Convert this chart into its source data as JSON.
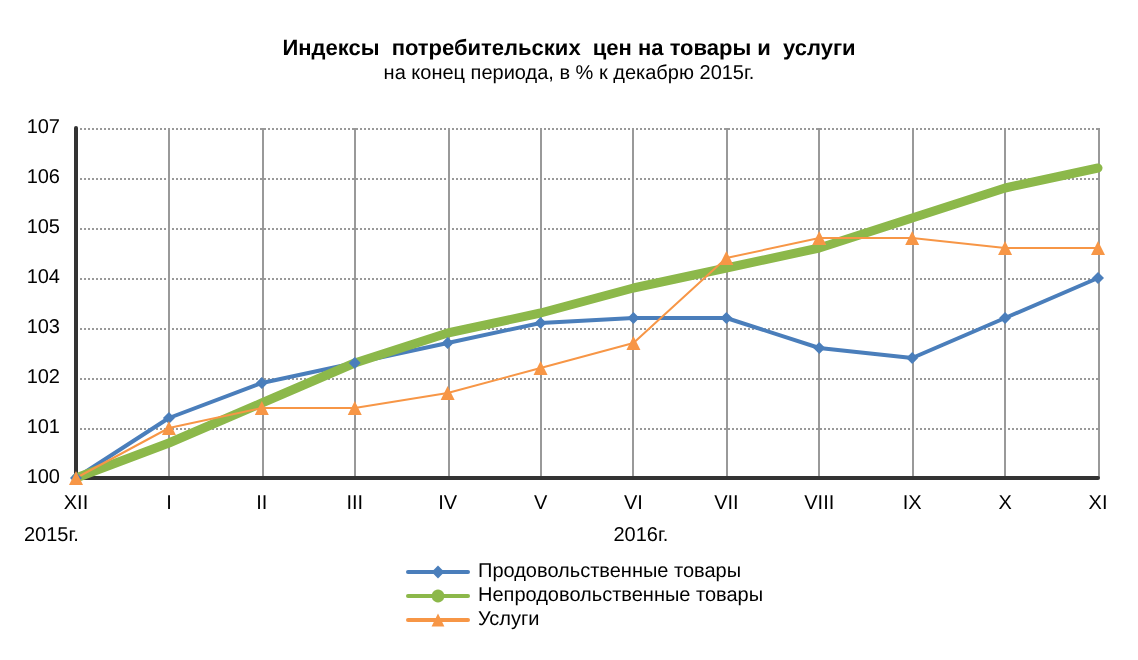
{
  "chart_data": {
    "type": "line",
    "title": "Индексы  потребительских  цен на товары и  услуги",
    "subtitle": "на конец периода, в % к декабрю 2015г.",
    "categories": [
      "XII",
      "I",
      "II",
      "III",
      "IV",
      "V",
      "VI",
      "VII",
      "VIII",
      "IX",
      "X",
      "XI"
    ],
    "series": [
      {
        "name": "Продовольственные товары",
        "color": "#4a7ebb",
        "marker": "diamond",
        "values": [
          100,
          101.2,
          101.9,
          102.3,
          102.7,
          103.1,
          103.2,
          103.2,
          102.6,
          102.4,
          103.2,
          104.0
        ]
      },
      {
        "name": "Непродовольственные товары",
        "color": "#8cb84a",
        "marker": "none",
        "values": [
          100,
          100.7,
          101.5,
          102.3,
          102.9,
          103.3,
          103.8,
          104.2,
          104.6,
          105.2,
          105.8,
          106.2
        ]
      },
      {
        "name": "Услуги",
        "color": "#f79646",
        "marker": "triangle",
        "values": [
          100,
          101.0,
          101.4,
          101.4,
          101.7,
          102.2,
          102.7,
          104.4,
          104.8,
          104.8,
          104.6,
          104.6
        ]
      }
    ],
    "annotations": [
      "2015г.",
      "2016г."
    ],
    "ylim": [
      100,
      107
    ],
    "yticks": [
      100,
      101,
      102,
      103,
      104,
      105,
      106,
      107
    ],
    "grid": true,
    "legend": "bottom"
  }
}
